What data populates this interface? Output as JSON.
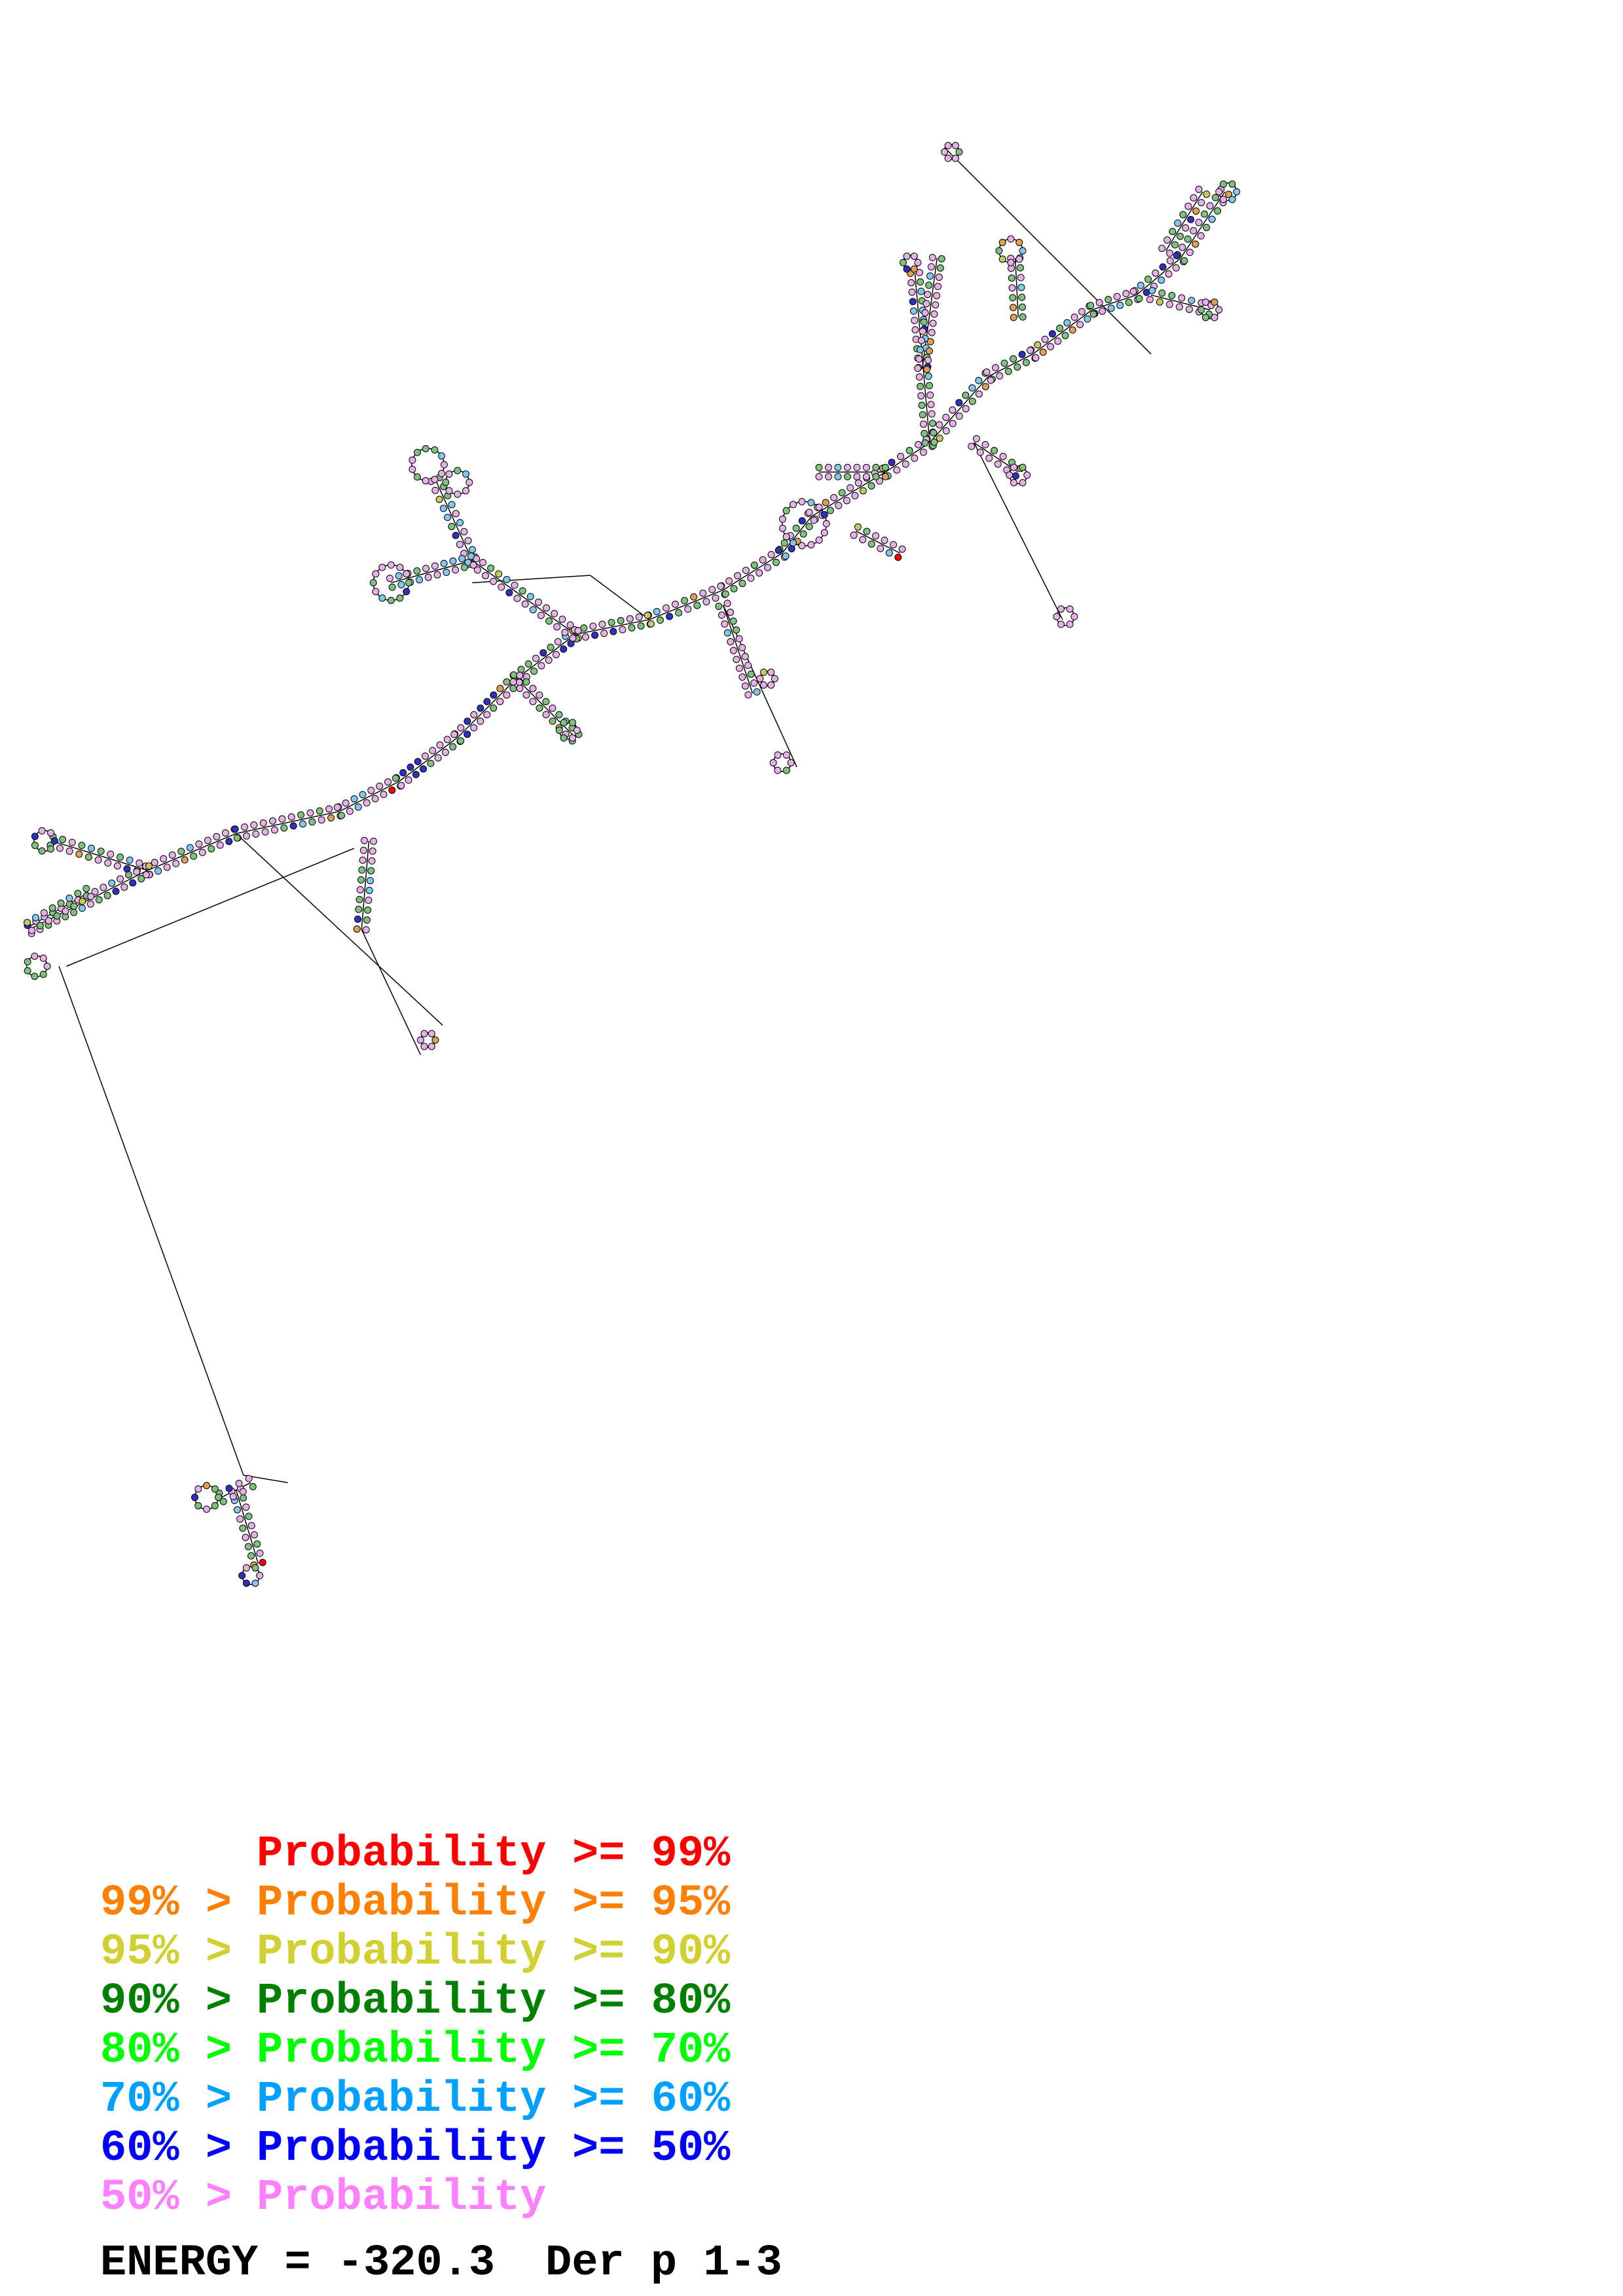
{
  "legend": [
    {
      "prefix": "",
      "label": "Probability",
      "suffix": ">= 99%",
      "color": "#ff0000"
    },
    {
      "prefix": "99% >",
      "label": "Probability",
      "suffix": ">= 95%",
      "color": "#ff8000"
    },
    {
      "prefix": "95% >",
      "label": "Probability",
      "suffix": ">= 90%",
      "color": "#d0d030"
    },
    {
      "prefix": "90% >",
      "label": "Probability",
      "suffix": ">= 80%",
      "color": "#008000"
    },
    {
      "prefix": "80% >",
      "label": "Probability",
      "suffix": ">= 70%",
      "color": "#00ff00"
    },
    {
      "prefix": "70% >",
      "label": "Probability",
      "suffix": ">= 60%",
      "color": "#00a0ff"
    },
    {
      "prefix": "60% >",
      "label": "Probability",
      "suffix": ">= 50%",
      "color": "#0000ff"
    },
    {
      "prefix": "50% >",
      "label": "Probability",
      "suffix": "",
      "color": "#ff80ff"
    }
  ],
  "footer": {
    "energy_label": "ENERGY = -320.3",
    "name": "Der p 1-3"
  },
  "diagram": {
    "type": "rna-secondary-structure",
    "backbone_color": "#000000",
    "nucleotide_fill_colors": [
      "#e8b0e8",
      "#80c080",
      "#80c8f0",
      "#3030c0",
      "#e0a050",
      "#c8c860",
      "#ff0000"
    ]
  }
}
